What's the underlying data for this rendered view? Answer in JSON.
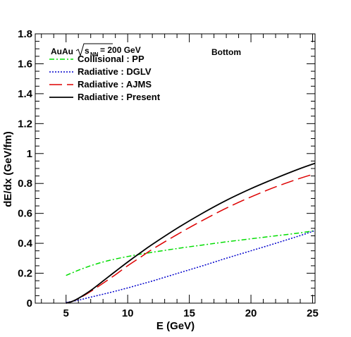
{
  "chart_data": {
    "type": "line",
    "xlabel": "E (GeV)",
    "ylabel": "dE/dx (GeV/fm)",
    "xlim": [
      2.5,
      25.2
    ],
    "ylim": [
      0,
      1.8
    ],
    "xticks": [
      5,
      10,
      15,
      20,
      25
    ],
    "yticks": [
      0,
      0.2,
      0.4,
      0.6,
      0.8,
      1,
      1.2,
      1.4,
      1.6,
      1.8
    ],
    "ytick_labels": [
      "0",
      "0.2",
      "0.4",
      "0.6",
      "0.8",
      "1",
      "1.2",
      "1.4",
      "1.6",
      "1.8"
    ],
    "grid": false,
    "legend_placement": "top-left",
    "annotations": {
      "system": "AuAu",
      "energy_symbol": "s",
      "energy_subscript": "NN",
      "energy_value": " = 200 GeV",
      "quark": "Bottom"
    },
    "series": [
      {
        "name": "Collisional : PP",
        "color": "#00dd00",
        "dash": "dashdot",
        "x": [
          5,
          6,
          7,
          8,
          9,
          10,
          11,
          12,
          14,
          16,
          18,
          20,
          22,
          24,
          25.2
        ],
        "y": [
          0.185,
          0.22,
          0.25,
          0.275,
          0.295,
          0.312,
          0.327,
          0.34,
          0.365,
          0.388,
          0.41,
          0.43,
          0.45,
          0.47,
          0.485
        ]
      },
      {
        "name": "Radiative : DGLV",
        "color": "#0000cc",
        "dash": "dotted",
        "x": [
          5,
          6,
          7,
          8,
          9,
          10,
          11,
          12,
          14,
          16,
          18,
          20,
          22,
          24,
          25.2
        ],
        "y": [
          0.005,
          0.02,
          0.04,
          0.06,
          0.08,
          0.102,
          0.125,
          0.148,
          0.198,
          0.248,
          0.3,
          0.35,
          0.4,
          0.452,
          0.485
        ]
      },
      {
        "name": "Radiative : AJMS",
        "color": "#dd0000",
        "dash": "longdash",
        "x": [
          5,
          5.5,
          6,
          7,
          8,
          9,
          10,
          11,
          12,
          14,
          16,
          18,
          20,
          22,
          24,
          25.2
        ],
        "y": [
          0.0,
          0.012,
          0.03,
          0.078,
          0.133,
          0.19,
          0.25,
          0.305,
          0.36,
          0.458,
          0.55,
          0.635,
          0.71,
          0.777,
          0.835,
          0.865
        ]
      },
      {
        "name": "Radiative : Present",
        "color": "#000000",
        "dash": "solid",
        "x": [
          5,
          5.5,
          6,
          7,
          8,
          9,
          10,
          11,
          12,
          14,
          16,
          18,
          20,
          22,
          24,
          25.2
        ],
        "y": [
          0.0,
          0.012,
          0.032,
          0.085,
          0.148,
          0.212,
          0.275,
          0.335,
          0.393,
          0.5,
          0.598,
          0.687,
          0.765,
          0.835,
          0.9,
          0.935
        ]
      }
    ]
  }
}
